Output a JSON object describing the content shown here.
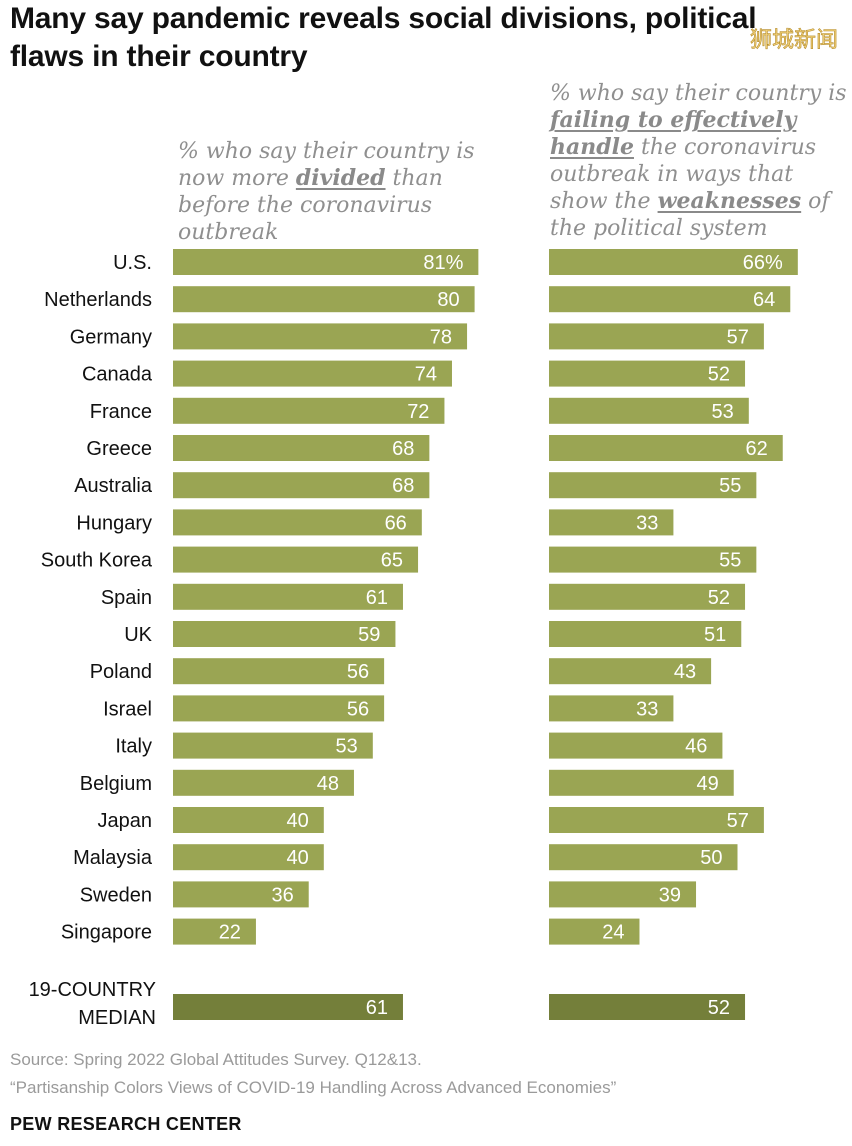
{
  "header": {
    "title": "Many say pandemic reveals social divisions, political flaws in their country",
    "watermark": "狮城新闻"
  },
  "subtitles": {
    "left": {
      "pre": "% who say their country is now more ",
      "em": "divided",
      "post": " than before the coronavirus outbreak"
    },
    "right": {
      "pre": "% who say their country is ",
      "em1": "failing to effectively handle",
      "mid": " the coronavirus outbreak in ways that show the ",
      "em2": "weaknesses",
      "post": " of the political system"
    }
  },
  "colors": {
    "bar": "#9aa553",
    "median_bar": "#747f3a"
  },
  "chart_data": {
    "type": "bar",
    "orientation": "horizontal",
    "categories": [
      "U.S.",
      "Netherlands",
      "Germany",
      "Canada",
      "France",
      "Greece",
      "Australia",
      "Hungary",
      "South Korea",
      "Spain",
      "UK",
      "Poland",
      "Israel",
      "Italy",
      "Belgium",
      "Japan",
      "Malaysia",
      "Sweden",
      "Singapore"
    ],
    "series": [
      {
        "values": [
          81,
          80,
          78,
          74,
          72,
          68,
          68,
          66,
          65,
          61,
          59,
          56,
          56,
          53,
          48,
          40,
          40,
          36,
          22
        ],
        "labels": [
          "81%",
          "80",
          "78",
          "74",
          "72",
          "68",
          "68",
          "66",
          "65",
          "61",
          "59",
          "56",
          "56",
          "53",
          "48",
          "40",
          "40",
          "36",
          "22"
        ]
      },
      {
        "values": [
          66,
          64,
          57,
          52,
          53,
          62,
          55,
          33,
          55,
          52,
          51,
          43,
          33,
          46,
          49,
          57,
          50,
          39,
          24
        ],
        "labels": [
          "66%",
          "64",
          "57",
          "52",
          "53",
          "62",
          "55",
          "33",
          "55",
          "52",
          "51",
          "43",
          "33",
          "46",
          "49",
          "57",
          "50",
          "39",
          "24"
        ]
      }
    ],
    "median": {
      "label_line1": "19-COUNTRY",
      "label_line2": "MEDIAN",
      "values": [
        61,
        52
      ],
      "labels": [
        "61",
        "52"
      ]
    },
    "xlim": [
      0,
      100
    ],
    "grid": false,
    "legend": "none"
  },
  "footer": {
    "source_line1": "Source: Spring 2022 Global Attitudes Survey. Q12&13.",
    "source_line2": "“Partisanship Colors Views of COVID-19 Handling Across Advanced Economies”",
    "brand": "PEW RESEARCH CENTER"
  }
}
